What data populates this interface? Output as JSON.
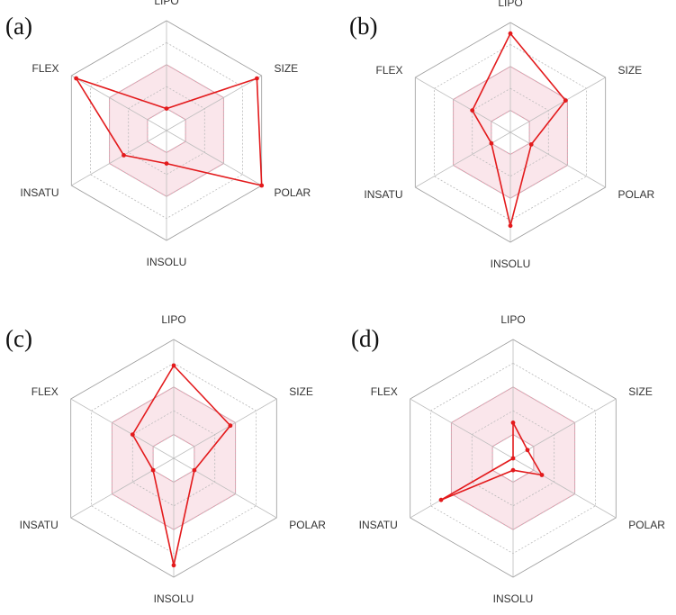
{
  "chart_data": [
    {
      "type": "radar",
      "panel_label": "(a)",
      "axes": [
        "LIPO",
        "SIZE",
        "POLAR",
        "INSOLU",
        "INSATU",
        "FLEX"
      ],
      "range": [
        0,
        1
      ],
      "optimal_band": {
        "inner": 0.2,
        "outer": 0.6
      },
      "values": [
        0.2,
        0.95,
        1.0,
        0.3,
        0.45,
        0.95
      ]
    },
    {
      "type": "radar",
      "panel_label": "(b)",
      "axes": [
        "LIPO",
        "SIZE",
        "POLAR",
        "INSOLU",
        "INSATU",
        "FLEX"
      ],
      "range": [
        0,
        1
      ],
      "optimal_band": {
        "inner": 0.2,
        "outer": 0.6
      },
      "values": [
        0.9,
        0.58,
        0.22,
        0.85,
        0.2,
        0.4
      ]
    },
    {
      "type": "radar",
      "panel_label": "(c)",
      "axes": [
        "LIPO",
        "SIZE",
        "POLAR",
        "INSOLU",
        "INSATU",
        "FLEX"
      ],
      "range": [
        0,
        1
      ],
      "optimal_band": {
        "inner": 0.2,
        "outer": 0.6
      },
      "values": [
        0.78,
        0.55,
        0.2,
        0.9,
        0.2,
        0.4
      ]
    },
    {
      "type": "radar",
      "panel_label": "(d)",
      "axes": [
        "LIPO",
        "SIZE",
        "POLAR",
        "INSOLU",
        "INSATU",
        "FLEX"
      ],
      "range": [
        0,
        1
      ],
      "optimal_band": {
        "inner": 0.2,
        "outer": 0.6
      },
      "values": [
        0.3,
        0.14,
        0.28,
        0.1,
        0.7,
        0.0
      ]
    }
  ],
  "colors": {
    "data_line": "#e31a1c",
    "band_fill": "#f6d2db",
    "band_stroke": "#e59aac",
    "grid": "#b9b9b9"
  }
}
